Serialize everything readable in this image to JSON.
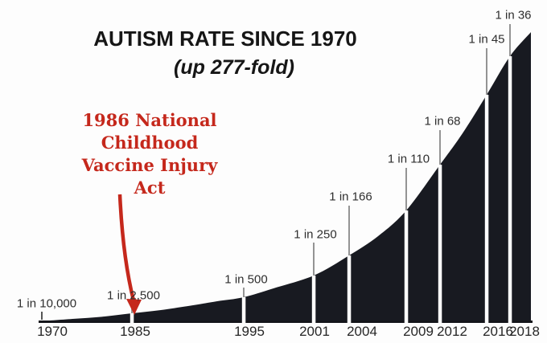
{
  "chart_data": {
    "type": "area",
    "title": "AUTISM RATE SINCE 1970",
    "subtitle": "(up 277-fold)",
    "grid": false,
    "legend": "none",
    "y_axis": {
      "visible": false
    },
    "x_axis": {
      "tick_labels": [
        "1970",
        "1985",
        "1995",
        "2001",
        "2004",
        "2009",
        "2012",
        "2016",
        "2018"
      ]
    },
    "series": [
      {
        "name": "Autism rate",
        "points": [
          {
            "year": "1970",
            "label": "1 in 10,000",
            "rate_denominator": 10000
          },
          {
            "year": "1985",
            "label": "1 in 2,500",
            "rate_denominator": 2500
          },
          {
            "year": "1995",
            "label": "1 in 500",
            "rate_denominator": 500
          },
          {
            "year": "2001",
            "label": "1 in 250",
            "rate_denominator": 250
          },
          {
            "year": "2004",
            "label": "1 in 166",
            "rate_denominator": 166
          },
          {
            "year": "2009",
            "label": "1 in 110",
            "rate_denominator": 110
          },
          {
            "year": "2012",
            "label": "1 in 68",
            "rate_denominator": 68
          },
          {
            "year": "2016",
            "label": "1 in 45",
            "rate_denominator": 45
          },
          {
            "year": "2018",
            "label": "1 in 36",
            "rate_denominator": 36
          }
        ]
      }
    ],
    "annotation": {
      "text": "1986 National\nChildhood\nVaccine Injury\nAct",
      "arrow_target_year": "1985"
    },
    "colors": {
      "area": "#181a21",
      "annotation_red": "#c5281c",
      "leader_line": "#949494",
      "tick_cut": "#ffffff",
      "baseline": "#14151a",
      "label_text": "#2e2e2e",
      "background": "#fdfdfd"
    }
  }
}
